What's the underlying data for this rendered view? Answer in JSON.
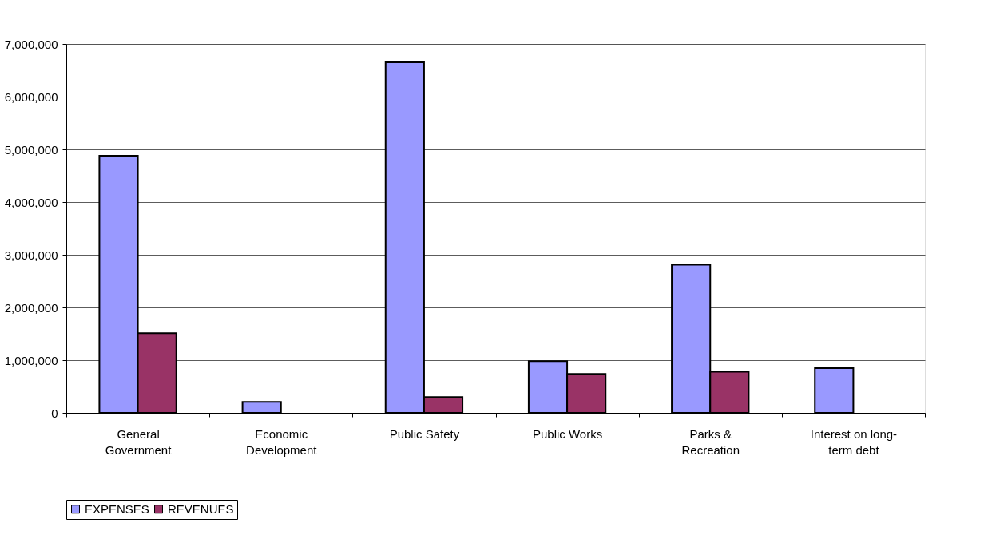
{
  "chart_data": {
    "type": "bar",
    "categories": [
      "General Government",
      "Economic Development",
      "Public Safety",
      "Public Works",
      "Parks & Recreation",
      "Interest on long-term debt"
    ],
    "series": [
      {
        "name": "EXPENSES",
        "color": "#9999ff",
        "values": [
          4880000,
          210000,
          6650000,
          980000,
          2810000,
          850000
        ]
      },
      {
        "name": "REVENUES",
        "color": "#993366",
        "values": [
          1510000,
          null,
          300000,
          740000,
          780000,
          null
        ]
      }
    ],
    "ylim": [
      0,
      7000000
    ],
    "yticks": [
      {
        "value": 0,
        "label": "0"
      },
      {
        "value": 1000000,
        "label": "1,000,000"
      },
      {
        "value": 2000000,
        "label": "2,000,000"
      },
      {
        "value": 3000000,
        "label": "3,000,000"
      },
      {
        "value": 4000000,
        "label": "4,000,000"
      },
      {
        "value": 5000000,
        "label": "5,000,000"
      },
      {
        "value": 6000000,
        "label": "6,000,000"
      },
      {
        "value": 7000000,
        "label": "7,000,000"
      }
    ],
    "grid": "y",
    "legend": "bottom"
  }
}
